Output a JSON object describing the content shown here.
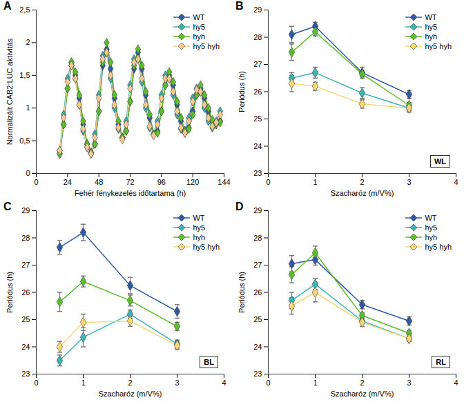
{
  "chart_data": [
    {
      "type": "line",
      "title": "A",
      "marker": "diamond",
      "grid": false,
      "legend": "top right",
      "x_label": "Fehér fénykezelés időtartama (h)",
      "y_label": "Normalizált CAB2:LUC aktivitás",
      "xlim": [
        0,
        144
      ],
      "xticks": [
        0,
        24,
        48,
        72,
        96,
        120,
        144
      ],
      "ylim": [
        0,
        2.5
      ],
      "yticks": [
        0,
        {
          "value": 0.5,
          "label": "0,5"
        },
        1,
        {
          "value": 1.5,
          "label": "1,5"
        },
        2,
        {
          "value": 2.5,
          "label": "2,5"
        }
      ],
      "x": [
        18,
        21,
        24,
        27,
        30,
        33,
        36,
        39,
        42,
        45,
        48,
        51,
        54,
        57,
        60,
        63,
        66,
        69,
        72,
        75,
        78,
        81,
        84,
        87,
        90,
        93,
        96,
        99,
        102,
        105,
        108,
        111,
        114,
        117,
        120,
        123,
        126,
        129,
        132,
        135,
        138,
        141
      ],
      "series": [
        {
          "name": "WT",
          "color": "#2f58a6",
          "values": [
            0.3,
            0.75,
            1.3,
            1.65,
            1.5,
            1.15,
            0.75,
            0.45,
            0.32,
            0.45,
            0.95,
            1.65,
            1.9,
            1.6,
            1.15,
            0.75,
            0.55,
            0.65,
            1.1,
            1.6,
            1.85,
            1.6,
            1.2,
            0.85,
            0.6,
            0.65,
            0.95,
            1.35,
            1.5,
            1.35,
            1.05,
            0.8,
            0.62,
            0.7,
            0.95,
            1.2,
            1.3,
            1.15,
            0.95,
            0.8,
            0.75,
            0.8
          ]
        },
        {
          "name": "hy5",
          "color": "#3bb4b4",
          "values": [
            0.35,
            0.9,
            1.45,
            1.7,
            1.45,
            1.05,
            0.65,
            0.4,
            0.32,
            0.6,
            1.2,
            1.8,
            1.85,
            1.45,
            1.0,
            0.68,
            0.55,
            0.8,
            1.35,
            1.75,
            1.75,
            1.4,
            1.0,
            0.7,
            0.6,
            0.8,
            1.2,
            1.5,
            1.45,
            1.2,
            0.9,
            0.68,
            0.65,
            0.85,
            1.15,
            1.3,
            1.25,
            1.0,
            0.8,
            0.7,
            0.8,
            0.95
          ]
        },
        {
          "name": "hyh",
          "color": "#5bbf2a",
          "values": [
            0.3,
            0.75,
            1.3,
            1.7,
            1.55,
            1.2,
            0.8,
            0.45,
            0.3,
            0.45,
            0.95,
            1.7,
            2.0,
            1.7,
            1.2,
            0.8,
            0.55,
            0.65,
            1.1,
            1.65,
            1.9,
            1.65,
            1.25,
            0.9,
            0.6,
            0.62,
            0.95,
            1.35,
            1.55,
            1.4,
            1.1,
            0.85,
            0.65,
            0.68,
            0.9,
            1.2,
            1.35,
            1.2,
            1.0,
            0.82,
            0.75,
            0.78
          ]
        },
        {
          "name": "hy5 hyh",
          "color": "#f5c98f",
          "values": [
            0.35,
            0.85,
            1.4,
            1.65,
            1.45,
            1.05,
            0.68,
            0.4,
            0.3,
            0.55,
            1.15,
            1.75,
            1.85,
            1.5,
            1.05,
            0.7,
            0.52,
            0.75,
            1.3,
            1.7,
            1.75,
            1.45,
            1.05,
            0.72,
            0.58,
            0.75,
            1.15,
            1.45,
            1.45,
            1.25,
            0.95,
            0.7,
            0.62,
            0.8,
            1.1,
            1.28,
            1.25,
            1.05,
            0.85,
            0.72,
            0.78,
            0.9
          ]
        }
      ]
    },
    {
      "type": "line",
      "title": "B",
      "marker": "diamond",
      "grid": false,
      "legend": "top right",
      "annotation": "WL",
      "x_label": "Szacharóz (m/V%)",
      "y_label": "Periódus (h)",
      "xlim": [
        0,
        4
      ],
      "xticks": [
        0,
        1,
        2,
        3,
        4
      ],
      "ylim": [
        23,
        29
      ],
      "yticks": [
        23,
        24,
        25,
        26,
        27,
        28,
        29
      ],
      "x": [
        0.5,
        1,
        2,
        3
      ],
      "series": [
        {
          "name": "WT",
          "color": "#2f58a6",
          "values": [
            28.1,
            28.4,
            26.7,
            25.9
          ],
          "errors": [
            0.3,
            0.15,
            0.2,
            0.15
          ]
        },
        {
          "name": "hy5",
          "color": "#3bb4b4",
          "values": [
            26.5,
            26.7,
            25.95,
            25.4
          ],
          "errors": [
            0.2,
            0.2,
            0.2,
            0.1
          ]
        },
        {
          "name": "hyh",
          "color": "#5bbf2a",
          "values": [
            27.45,
            28.2,
            26.65,
            25.5
          ],
          "errors": [
            0.3,
            0.15,
            0.1,
            0.1
          ]
        },
        {
          "name": "hy5 hyh",
          "color": "#f7d774",
          "values": [
            26.3,
            26.2,
            25.55,
            25.4
          ],
          "errors": [
            0.3,
            0.15,
            0.15,
            0.15
          ]
        }
      ]
    },
    {
      "type": "line",
      "title": "C",
      "marker": "diamond",
      "grid": false,
      "legend": "top right",
      "annotation": "BL",
      "x_label": "Szacharóz (m/V%)",
      "y_label": "Periódus (h)",
      "xlim": [
        0,
        4
      ],
      "xticks": [
        0,
        1,
        2,
        3,
        4
      ],
      "ylim": [
        23,
        29
      ],
      "yticks": [
        23,
        24,
        25,
        26,
        27,
        28,
        29
      ],
      "x": [
        0.5,
        1,
        2,
        3
      ],
      "series": [
        {
          "name": "WT",
          "color": "#2f58a6",
          "values": [
            27.65,
            28.2,
            26.25,
            25.3
          ],
          "errors": [
            0.25,
            0.3,
            0.3,
            0.25
          ]
        },
        {
          "name": "hy5",
          "color": "#3bb4b4",
          "values": [
            23.5,
            24.35,
            25.2,
            24.1
          ],
          "errors": [
            0.2,
            0.35,
            0.15,
            0.15
          ]
        },
        {
          "name": "hyh",
          "color": "#5bbf2a",
          "values": [
            25.65,
            26.4,
            25.7,
            24.75
          ],
          "errors": [
            0.35,
            0.2,
            0.2,
            0.15
          ]
        },
        {
          "name": "hy5 hyh",
          "color": "#f7d774",
          "values": [
            24.0,
            24.9,
            24.95,
            24.05
          ],
          "errors": [
            0.2,
            0.3,
            0.2,
            0.15
          ]
        }
      ]
    },
    {
      "type": "line",
      "title": "D",
      "marker": "diamond",
      "grid": false,
      "legend": "top right",
      "annotation": "RL",
      "x_label": "Szacharóz (m/V%)",
      "y_label": "Periódus (h)",
      "xlim": [
        0,
        4
      ],
      "xticks": [
        0,
        1,
        2,
        3,
        4
      ],
      "ylim": [
        23,
        29
      ],
      "yticks": [
        23,
        24,
        25,
        26,
        27,
        28,
        29
      ],
      "x": [
        0.5,
        1,
        2,
        3
      ],
      "series": [
        {
          "name": "WT",
          "color": "#2f58a6",
          "values": [
            27.05,
            27.2,
            25.55,
            24.95
          ],
          "errors": [
            0.3,
            0.2,
            0.15,
            0.15
          ]
        },
        {
          "name": "hy5",
          "color": "#3bb4b4",
          "values": [
            25.7,
            26.3,
            24.95,
            24.3
          ],
          "errors": [
            0.3,
            0.2,
            0.1,
            0.1
          ]
        },
        {
          "name": "hyh",
          "color": "#5bbf2a",
          "values": [
            26.65,
            27.45,
            25.15,
            24.5
          ],
          "errors": [
            0.3,
            0.25,
            0.1,
            0.1
          ]
        },
        {
          "name": "hy5 hyh",
          "color": "#f7d774",
          "values": [
            25.5,
            26.0,
            24.9,
            24.3
          ],
          "errors": [
            0.3,
            0.35,
            0.15,
            0.1
          ]
        }
      ]
    }
  ]
}
